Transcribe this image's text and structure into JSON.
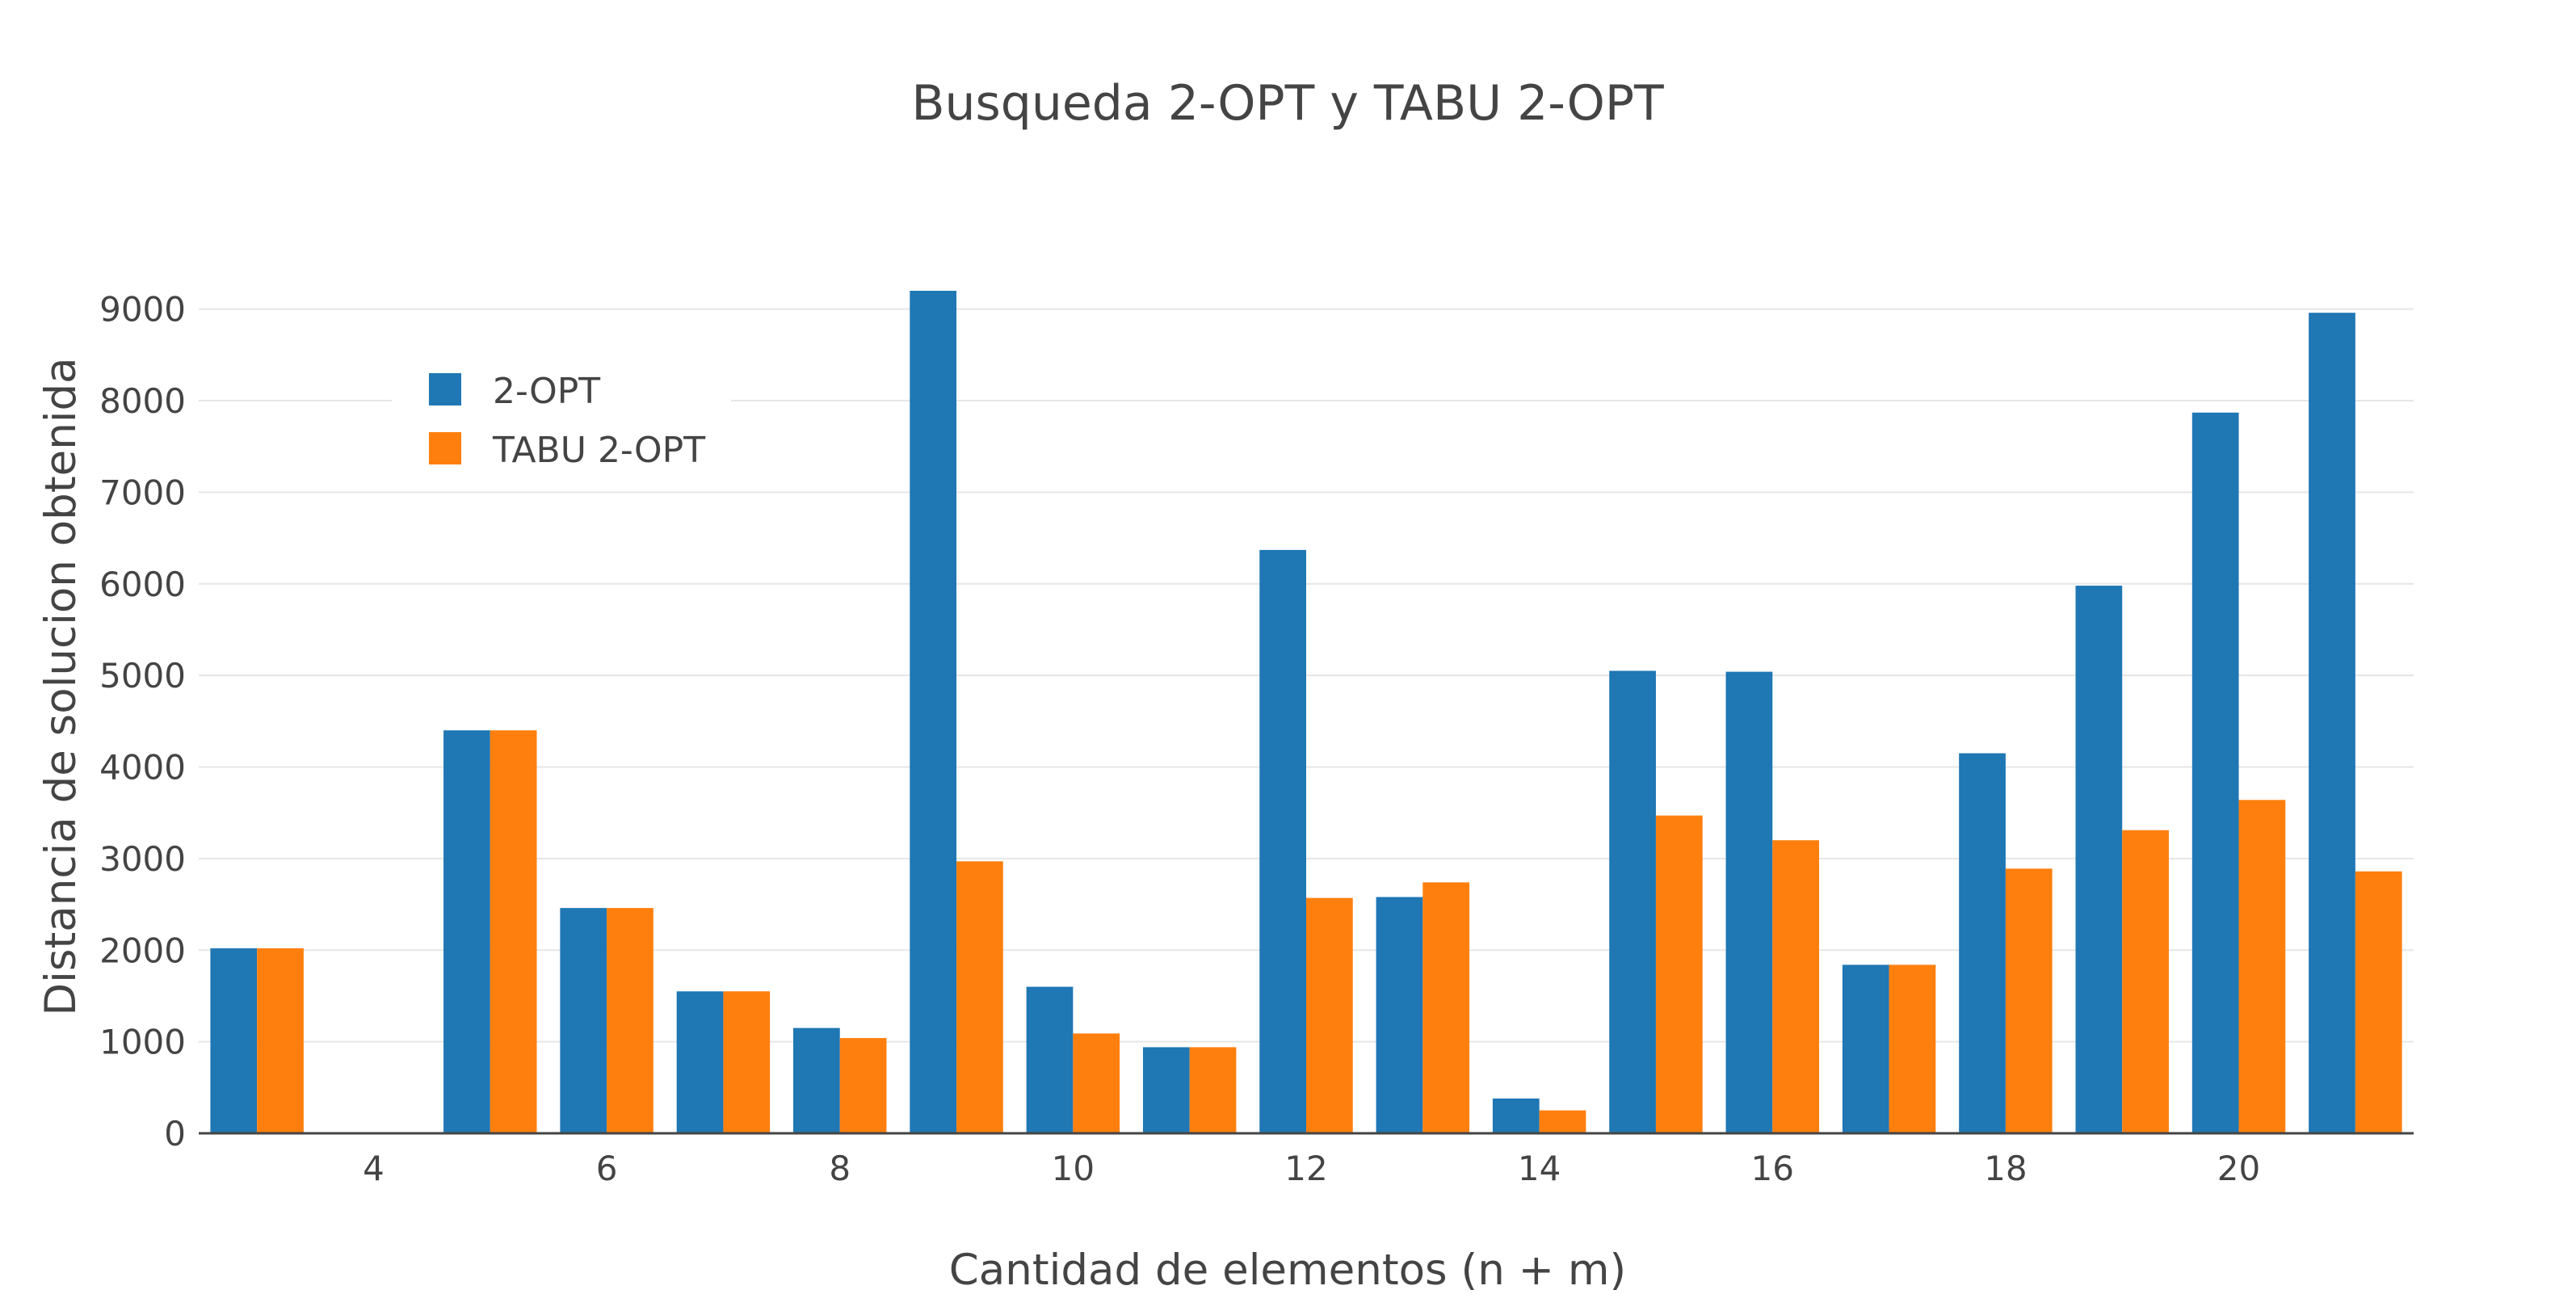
{
  "chart_data": {
    "type": "bar",
    "title": "Busqueda 2-OPT y TABU 2-OPT",
    "xlabel": "Cantidad de elementos (n + m)",
    "ylabel": "Distancia de solucion obtenida",
    "x": [
      3,
      4,
      5,
      6,
      7,
      8,
      9,
      10,
      11,
      12,
      13,
      14,
      15,
      16,
      17,
      18,
      19,
      20,
      21
    ],
    "xticks": [
      4,
      6,
      8,
      10,
      12,
      14,
      16,
      18,
      20
    ],
    "xlim": [
      2.5,
      21.5
    ],
    "ylim": [
      0,
      9200
    ],
    "yticks": [
      0,
      1000,
      2000,
      3000,
      4000,
      5000,
      6000,
      7000,
      8000,
      9000
    ],
    "grid": true,
    "legend_position": "top-left",
    "series": [
      {
        "name": "2-OPT",
        "color": "#1f77b4",
        "values": [
          2020,
          0,
          4400,
          2460,
          1550,
          1150,
          9200,
          1600,
          940,
          6370,
          2580,
          380,
          5050,
          5040,
          1840,
          4150,
          5980,
          7870,
          8960
        ]
      },
      {
        "name": "TABU 2-OPT",
        "color": "#ff7f0e",
        "values": [
          2020,
          0,
          4400,
          2460,
          1550,
          1040,
          2970,
          1090,
          940,
          2570,
          2740,
          250,
          3470,
          3200,
          1840,
          2890,
          3310,
          3640,
          2860
        ]
      }
    ]
  }
}
